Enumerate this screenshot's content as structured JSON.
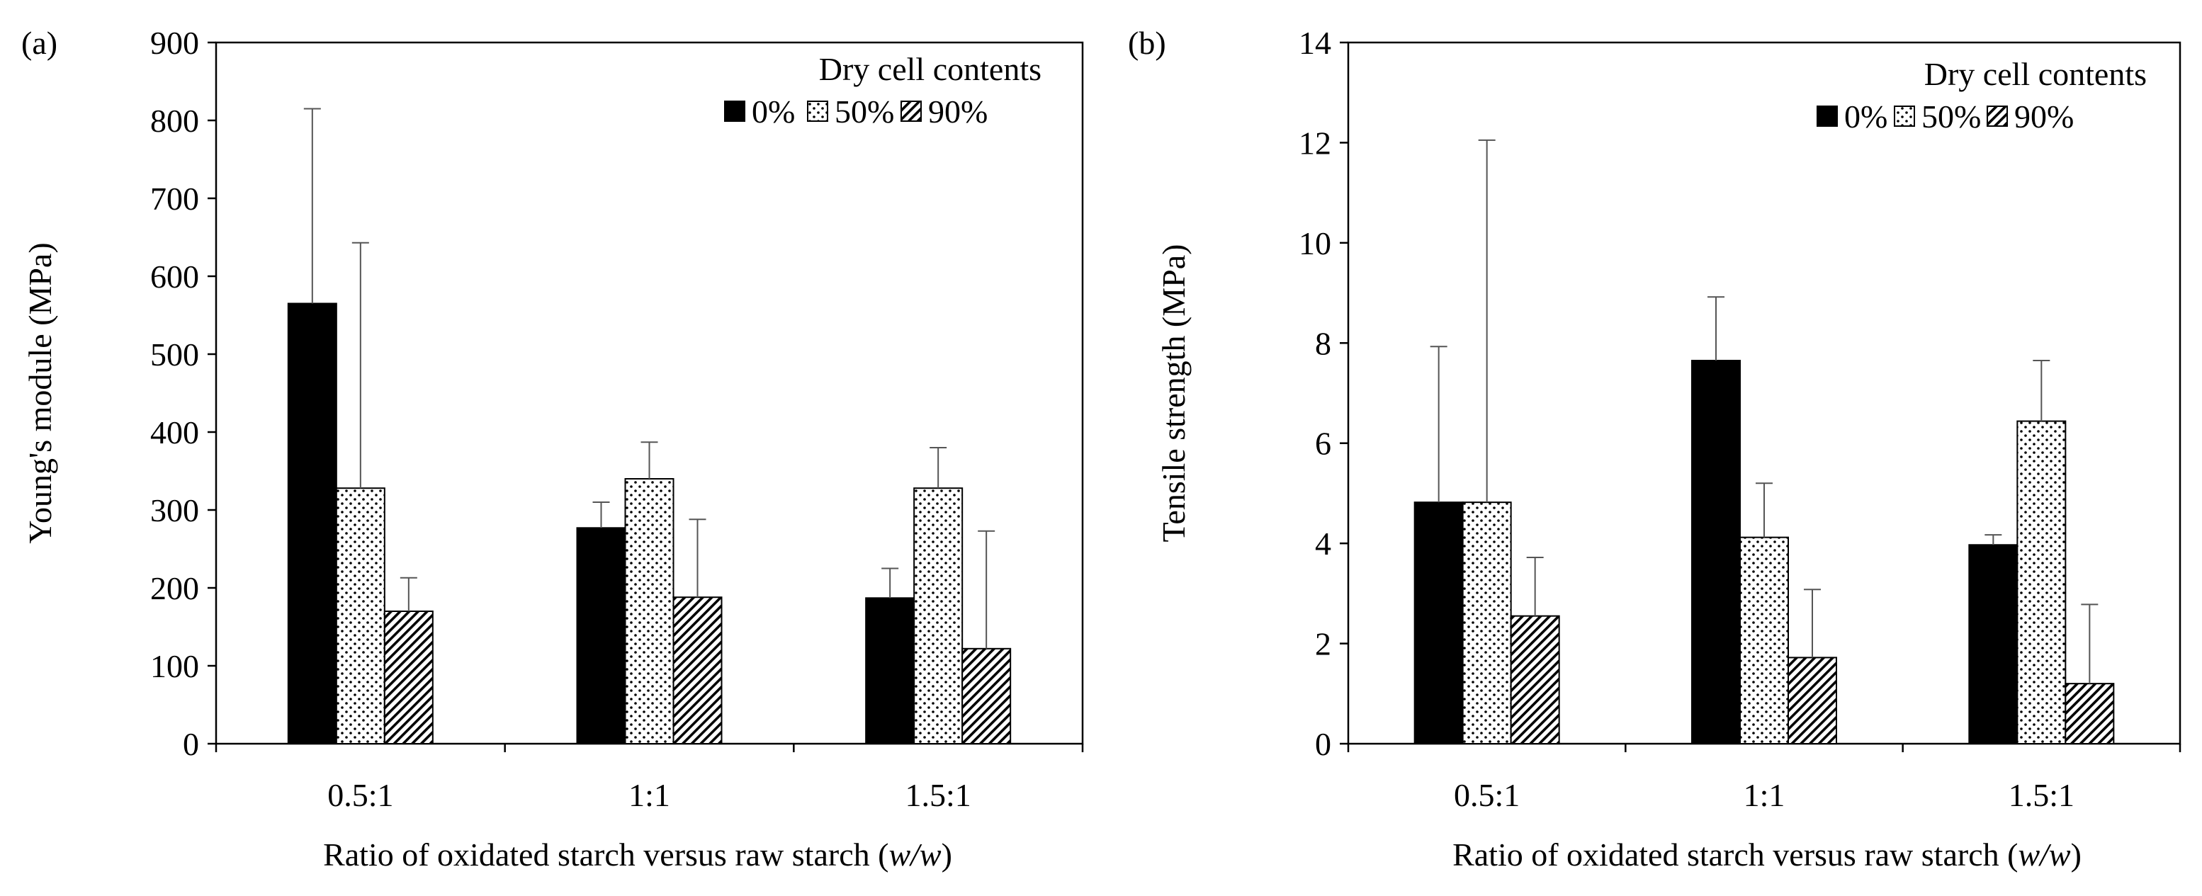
{
  "chart_data": [
    {
      "type": "bar",
      "panel_label": "(a)",
      "title": "",
      "xlabel_parts": [
        "Ratio of oxidated starch versus raw starch (",
        "w/w",
        ")"
      ],
      "ylabel": "Young's module (MPa)",
      "categories": [
        "0.5:1",
        "1:1",
        "1.5:1"
      ],
      "ylim": [
        0,
        900
      ],
      "yticks": [
        0,
        100,
        200,
        300,
        400,
        500,
        600,
        700,
        800,
        900
      ],
      "legend_title": "Dry cell contents",
      "legend_position": "top-right",
      "series": [
        {
          "name": "0%",
          "pattern": "solid",
          "values": [
            565,
            277,
            187
          ],
          "error_upper": [
            815,
            310,
            225
          ]
        },
        {
          "name": "50%",
          "pattern": "dotted",
          "values": [
            328,
            340,
            328
          ],
          "error_upper": [
            643,
            387,
            380
          ]
        },
        {
          "name": "90%",
          "pattern": "hatched",
          "values": [
            170,
            188,
            122
          ],
          "error_upper": [
            213,
            288,
            273
          ]
        }
      ]
    },
    {
      "type": "bar",
      "panel_label": "(b)",
      "title": "",
      "xlabel_parts": [
        "Ratio of oxidated starch versus raw starch (",
        "w/w",
        ")"
      ],
      "ylabel": "Tensile strength (MPa)",
      "categories": [
        "0.5:1",
        "1:1",
        "1.5:1"
      ],
      "ylim": [
        0,
        14
      ],
      "yticks": [
        0,
        2,
        4,
        6,
        8,
        10,
        12,
        14
      ],
      "legend_title": "Dry cell contents",
      "legend_position": "top-right",
      "series": [
        {
          "name": "0%",
          "pattern": "solid",
          "values": [
            4.82,
            7.65,
            3.97
          ],
          "error_upper": [
            7.93,
            8.92,
            4.17
          ]
        },
        {
          "name": "50%",
          "pattern": "dotted",
          "values": [
            4.82,
            4.12,
            6.44
          ],
          "error_upper": [
            12.05,
            5.2,
            7.65
          ]
        },
        {
          "name": "90%",
          "pattern": "hatched",
          "values": [
            2.55,
            1.72,
            1.2
          ],
          "error_upper": [
            3.72,
            3.08,
            2.78
          ]
        }
      ]
    }
  ]
}
